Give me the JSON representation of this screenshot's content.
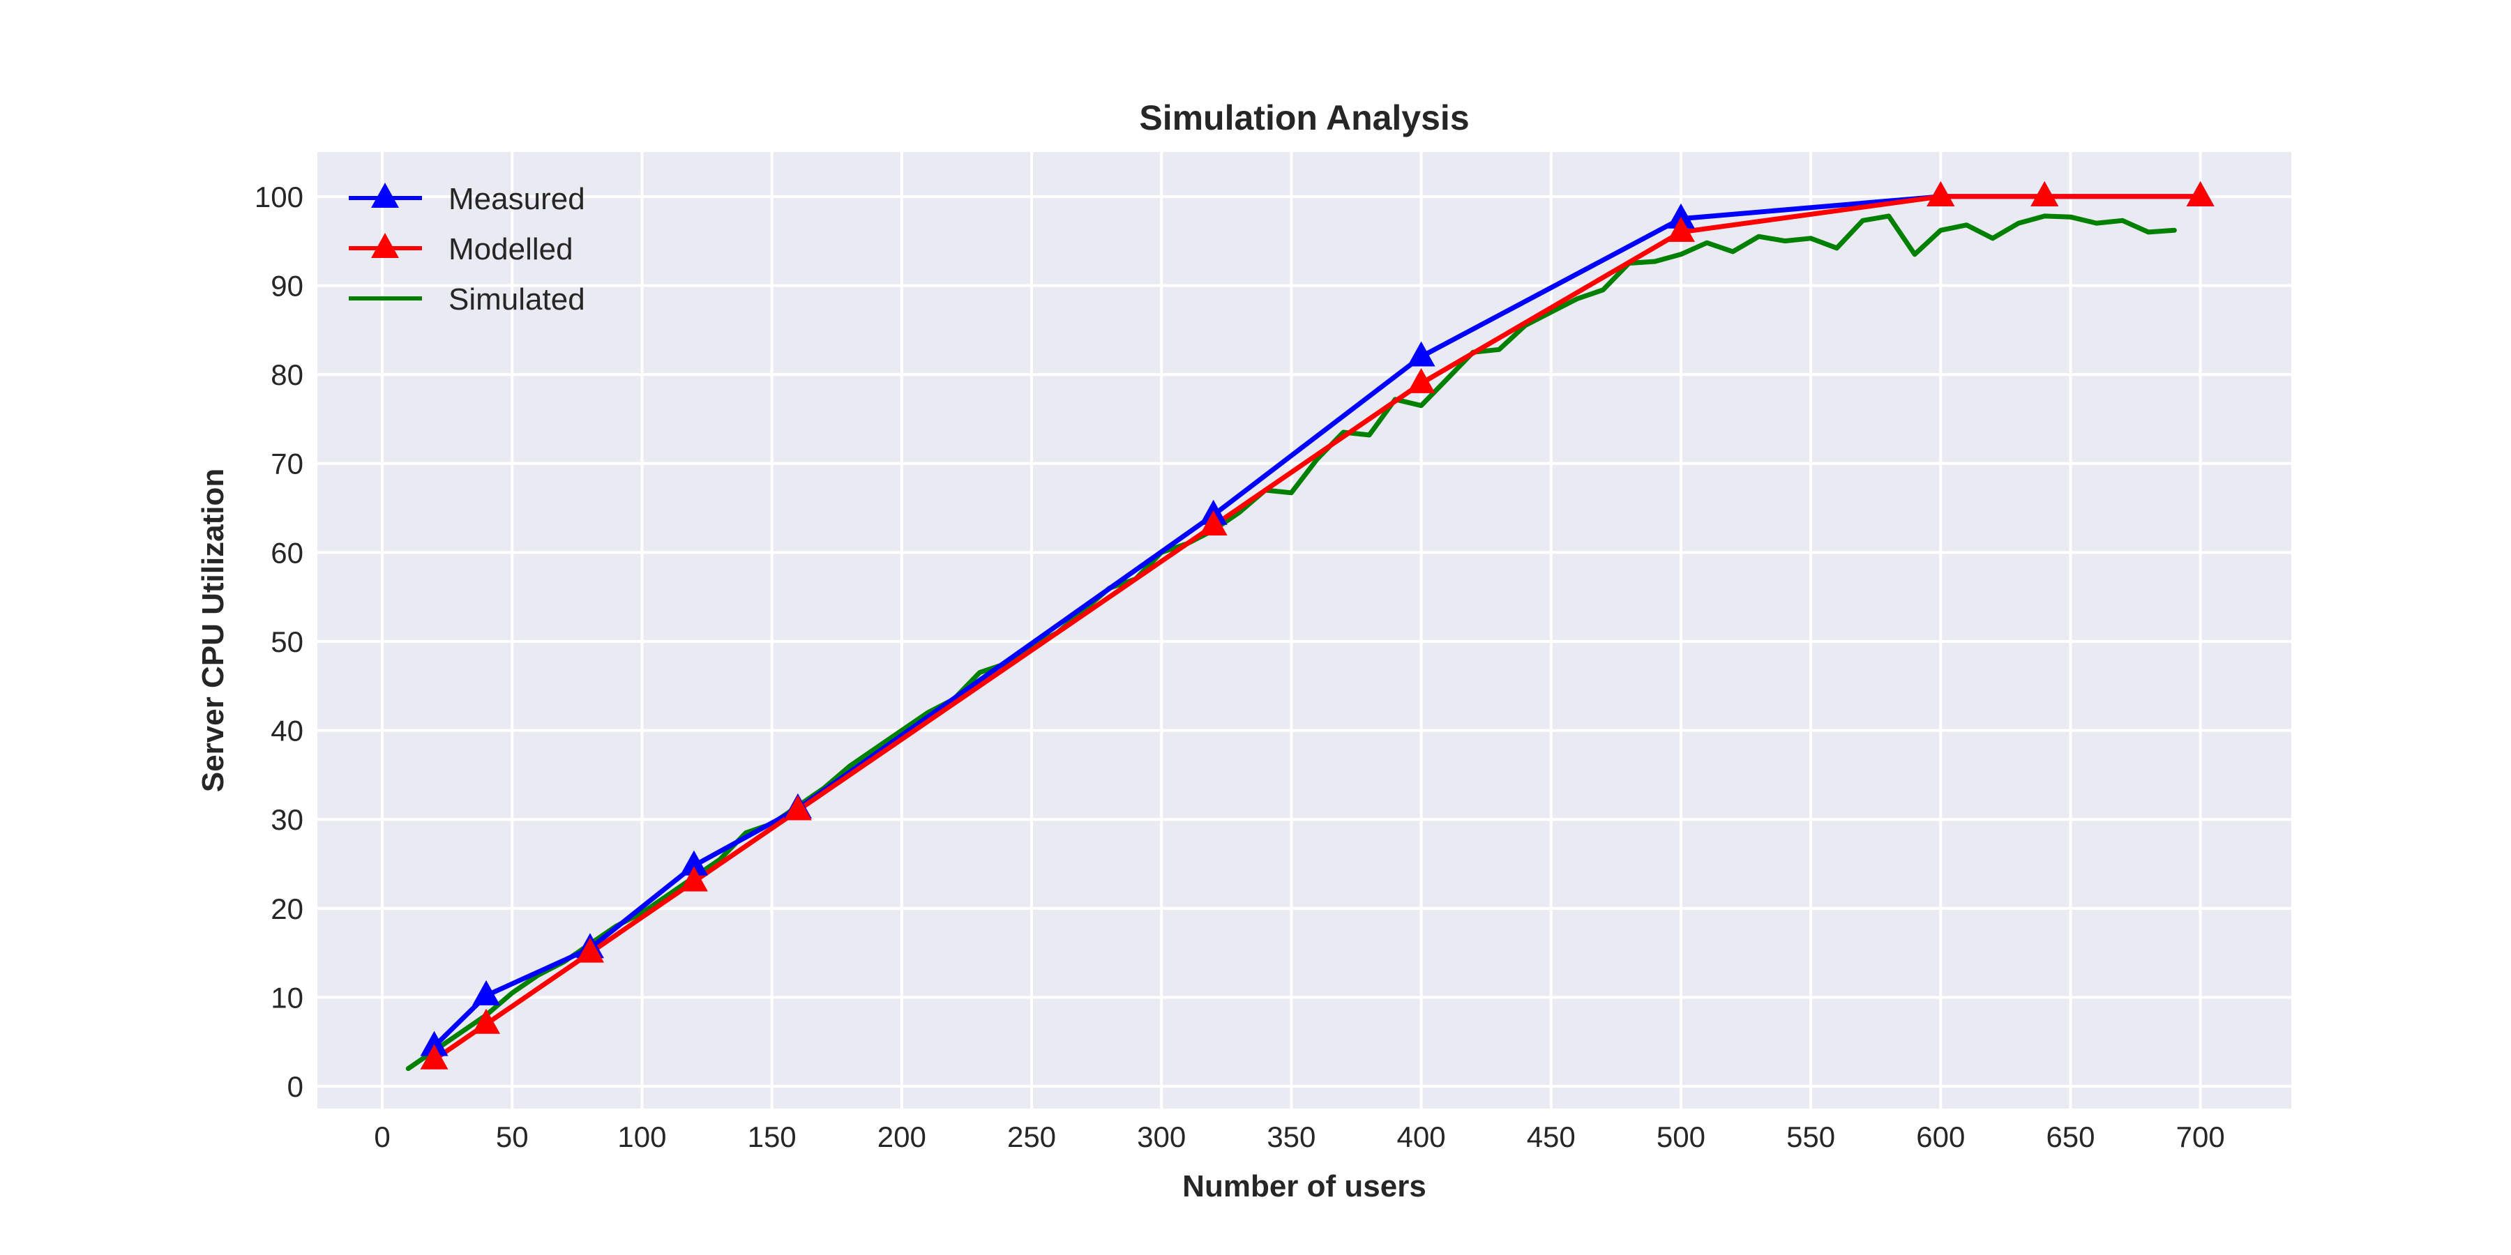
{
  "chart_data": {
    "type": "line",
    "title": "Simulation Analysis",
    "xlabel": "Number of users",
    "ylabel": "Server CPU Utilization",
    "xlim": [
      -25,
      735
    ],
    "ylim": [
      -2.5,
      105
    ],
    "xticks": [
      0,
      50,
      100,
      150,
      200,
      250,
      300,
      350,
      400,
      450,
      500,
      550,
      600,
      650,
      700
    ],
    "yticks": [
      0,
      10,
      20,
      30,
      40,
      50,
      60,
      70,
      80,
      90,
      100
    ],
    "grid": true,
    "legend_position": "top-left",
    "series": [
      {
        "name": "Measured",
        "color": "#0000ff",
        "marker": "triangle",
        "x": [
          20,
          40,
          80,
          120,
          160,
          320,
          400,
          500,
          600,
          640,
          700
        ],
        "y": [
          4.5,
          10.2,
          15.5,
          24.8,
          31.2,
          64.2,
          82,
          97.5,
          100,
          100,
          100
        ]
      },
      {
        "name": "Modelled",
        "color": "#ff0000",
        "marker": "triangle",
        "x": [
          20,
          40,
          80,
          120,
          160,
          320,
          400,
          500,
          600,
          640,
          700
        ],
        "y": [
          3,
          7,
          15,
          23,
          31,
          63,
          79,
          96,
          100,
          100,
          100
        ]
      },
      {
        "name": "Simulated",
        "color": "#008000",
        "marker": "none",
        "x": [
          10,
          20,
          30,
          40,
          50,
          60,
          70,
          80,
          90,
          100,
          110,
          120,
          130,
          140,
          150,
          160,
          170,
          180,
          190,
          200,
          210,
          220,
          230,
          240,
          250,
          260,
          270,
          280,
          290,
          300,
          310,
          320,
          330,
          340,
          350,
          360,
          370,
          380,
          390,
          400,
          410,
          420,
          430,
          440,
          450,
          460,
          470,
          480,
          490,
          500,
          510,
          520,
          530,
          540,
          550,
          560,
          570,
          580,
          590,
          600,
          610,
          620,
          630,
          640,
          650,
          660,
          670,
          680,
          690
        ],
        "y": [
          2,
          4,
          6,
          8,
          10.5,
          12.5,
          14,
          16,
          18,
          19.5,
          21.5,
          23.5,
          25.5,
          28.5,
          29.5,
          31.5,
          33.5,
          36,
          38,
          40,
          42,
          43.5,
          46.5,
          47.5,
          49.5,
          51,
          53.5,
          56,
          57,
          60,
          61,
          62.5,
          64.5,
          67,
          66.7,
          70.5,
          73.5,
          73.2,
          77.2,
          76.5,
          79.5,
          82.5,
          82.8,
          85.5,
          87,
          88.5,
          89.5,
          92.5,
          92.7,
          93.5,
          94.8,
          93.8,
          95.5,
          95,
          95.3,
          94.2,
          97.3,
          97.8,
          93.5,
          96.2,
          96.8,
          95.3,
          97,
          97.8,
          97.7,
          97,
          97.3,
          96,
          96.2
        ]
      }
    ]
  }
}
